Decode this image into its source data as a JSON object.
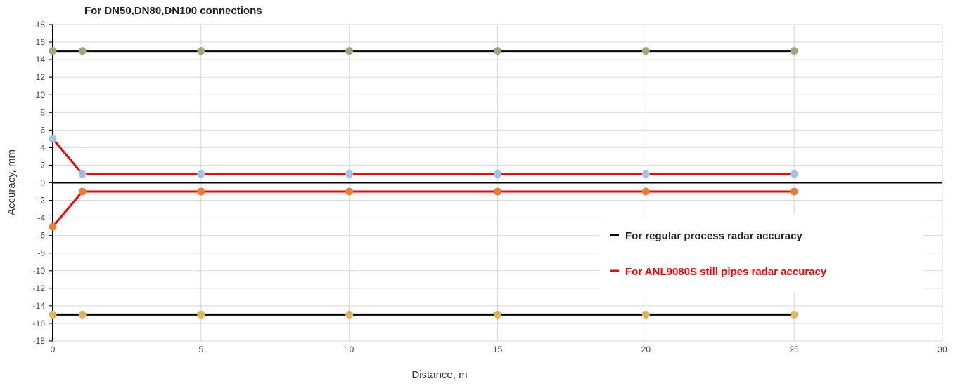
{
  "chart_data": {
    "type": "line",
    "title": "For DN50,DN80,DN100 connections",
    "xlabel": "Distance, m",
    "ylabel": "Accuracy, mm",
    "xlim": [
      0,
      30
    ],
    "ylim": [
      -18,
      18
    ],
    "x_ticks": [
      0,
      5,
      10,
      15,
      20,
      25,
      30
    ],
    "y_ticks": [
      18,
      16,
      14,
      12,
      10,
      8,
      6,
      4,
      2,
      0,
      -2,
      -4,
      -6,
      -8,
      -10,
      -12,
      -14,
      -16,
      -18
    ],
    "grid": true,
    "legend_position": "right",
    "legend": [
      {
        "label": "For regular process radar accuracy",
        "color": "#000000"
      },
      {
        "label": "For ANL9080S still pipes radar accuracy",
        "color": "#ff0000"
      }
    ],
    "series": [
      {
        "x": [
          0,
          1,
          5,
          10,
          15,
          20,
          25
        ],
        "y": [
          15,
          15,
          15,
          15,
          15,
          15,
          15
        ],
        "line_color": "#000000",
        "marker_color": "#9aab7b"
      },
      {
        "x": [
          0,
          1,
          5,
          10,
          15,
          20,
          25
        ],
        "y": [
          5,
          1,
          1,
          1,
          1,
          1,
          1
        ],
        "line_color": "#ff0000",
        "marker_color": "#9dc3e6"
      },
      {
        "x": [
          0,
          1,
          5,
          10,
          15,
          20,
          25
        ],
        "y": [
          -5,
          -1,
          -1,
          -1,
          -1,
          -1,
          -1
        ],
        "line_color": "#ff0000",
        "marker_color": "#ed7d31"
      },
      {
        "x": [
          0,
          1,
          5,
          10,
          15,
          20,
          25
        ],
        "y": [
          -15,
          -15,
          -15,
          -15,
          -15,
          -15,
          -15
        ],
        "line_color": "#000000",
        "marker_color": "#e2b45a"
      }
    ]
  }
}
